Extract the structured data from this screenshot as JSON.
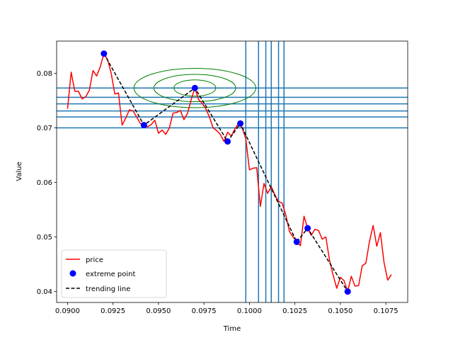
{
  "chart_data": {
    "type": "line",
    "title": "",
    "xlabel": "Time",
    "ylabel": "Value",
    "xlim": [
      0.0894,
      0.1087
    ],
    "ylim": [
      0.038,
      0.0859
    ],
    "xticks": [
      0.09,
      0.0925,
      0.095,
      0.0975,
      0.1,
      0.1025,
      0.105,
      0.1075
    ],
    "xtick_labels": [
      "0.0900",
      "0.0925",
      "0.0950",
      "0.0975",
      "0.1000",
      "0.1025",
      "0.1050",
      "0.1075"
    ],
    "yticks": [
      0.04,
      0.05,
      0.06,
      0.07,
      0.08
    ],
    "ytick_labels": [
      "0.04",
      "0.05",
      "0.06",
      "0.07",
      "0.08"
    ],
    "grid": false,
    "legend_position": "lower-left",
    "series": [
      {
        "name": "price",
        "style": "line",
        "color": "#ff0000",
        "x": [
          0.09,
          0.0902,
          0.0904,
          0.0906,
          0.0908,
          0.091,
          0.0912,
          0.0914,
          0.0916,
          0.0918,
          0.092,
          0.0922,
          0.0924,
          0.0926,
          0.0928,
          0.093,
          0.0932,
          0.0934,
          0.0936,
          0.0938,
          0.094,
          0.0942,
          0.0944,
          0.0946,
          0.0948,
          0.095,
          0.0952,
          0.0954,
          0.0956,
          0.0958,
          0.096,
          0.0962,
          0.0964,
          0.0966,
          0.0968,
          0.097,
          0.0972,
          0.0974,
          0.0976,
          0.0978,
          0.098,
          0.0982,
          0.0984,
          0.0986,
          0.0988,
          0.099,
          0.0992,
          0.0994,
          0.0996,
          0.0998,
          0.1,
          0.1002,
          0.1004,
          0.1006,
          0.1008,
          0.101,
          0.1012,
          0.1014,
          0.1016,
          0.1018,
          0.102,
          0.1022,
          0.1024,
          0.1026,
          0.1028,
          0.103,
          0.1032,
          0.1034,
          0.1036,
          0.1038,
          0.104,
          0.1042,
          0.1044,
          0.1046,
          0.1048,
          0.105,
          0.1052,
          0.1054,
          0.1056,
          0.1058,
          0.106,
          0.1062,
          0.1064,
          0.1066,
          0.1068,
          0.107,
          0.1072,
          0.1074,
          0.1076,
          0.1078
        ],
        "y": [
          0.0735,
          0.0802,
          0.0767,
          0.0767,
          0.0753,
          0.0757,
          0.0769,
          0.0805,
          0.0795,
          0.0812,
          0.0836,
          0.0825,
          0.08,
          0.0762,
          0.0764,
          0.0705,
          0.0718,
          0.0733,
          0.0731,
          0.072,
          0.0708,
          0.0705,
          0.0702,
          0.0706,
          0.0714,
          0.069,
          0.0696,
          0.0688,
          0.07,
          0.0727,
          0.0728,
          0.0732,
          0.0715,
          0.0727,
          0.0752,
          0.0773,
          0.0752,
          0.0745,
          0.0735,
          0.072,
          0.07,
          0.0695,
          0.0688,
          0.0675,
          0.0692,
          0.0685,
          0.0698,
          0.0708,
          0.07,
          0.068,
          0.0623,
          0.0626,
          0.0627,
          0.0556,
          0.0598,
          0.058,
          0.0592,
          0.0577,
          0.0565,
          0.0562,
          0.054,
          0.051,
          0.05,
          0.0491,
          0.0484,
          0.0538,
          0.0516,
          0.0503,
          0.0514,
          0.0512,
          0.0496,
          0.05,
          0.0458,
          0.043,
          0.0406,
          0.0426,
          0.042,
          0.04,
          0.0428,
          0.041,
          0.0411,
          0.0447,
          0.0452,
          0.0492,
          0.0521,
          0.0483,
          0.0508,
          0.0453,
          0.0421,
          0.0431
        ]
      },
      {
        "name": "extreme point",
        "style": "marker",
        "color": "#0000ff",
        "x": [
          0.092,
          0.0942,
          0.097,
          0.0988,
          0.0995,
          0.1026,
          0.1032,
          0.1054
        ],
        "y": [
          0.0836,
          0.0705,
          0.0773,
          0.0675,
          0.0708,
          0.0491,
          0.0516,
          0.04
        ]
      },
      {
        "name": "trending line",
        "style": "dashed",
        "color": "#000000",
        "x": [
          0.092,
          0.0942,
          0.097,
          0.0988,
          0.0995,
          0.1026,
          0.1032,
          0.1054
        ],
        "y": [
          0.0836,
          0.0705,
          0.0773,
          0.0675,
          0.0708,
          0.0491,
          0.0516,
          0.04
        ]
      }
    ],
    "horizontal_lines": {
      "color": "#1f77b4",
      "y": [
        0.07,
        0.072,
        0.0731,
        0.0744,
        0.0756,
        0.0773
      ]
    },
    "vertical_lines": {
      "color": "#1f77b4",
      "x": [
        0.0998,
        0.1005,
        0.1009,
        0.1012,
        0.1016,
        0.1019
      ]
    },
    "contour_ellipses": {
      "color": "#008000",
      "center": [
        0.097,
        0.0773
      ],
      "semi_axes": [
        [
          0.00115,
          0.0015
        ],
        [
          0.00225,
          0.0025
        ],
        [
          0.00335,
          0.0036
        ]
      ]
    }
  }
}
